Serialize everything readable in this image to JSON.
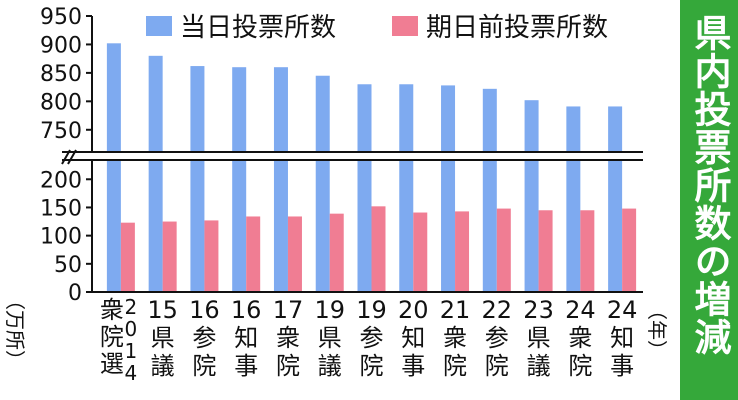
{
  "colors": {
    "election_day": "#7eaaf0",
    "early_voting": "#f07d93",
    "title_bg": "#35a83a"
  },
  "side_title": "県内投票所数の増減",
  "legend": {
    "election_day": "当日投票所数",
    "early_voting": "期日前投票所数"
  },
  "unit_label": "（万所）",
  "year_label": "（年）",
  "chart_data": {
    "type": "bar",
    "title": "県内投票所数の増減",
    "axis_break": true,
    "ylim_lower": [
      0,
      220
    ],
    "ylim_upper": [
      725,
      950
    ],
    "yticks_lower": [
      0,
      50,
      100,
      150,
      200
    ],
    "yticks_upper": [
      750,
      800,
      850,
      900,
      950
    ],
    "categories": [
      {
        "year": "2014",
        "label": "衆院選",
        "chars": [
          "2",
          "0",
          "1",
          "4"
        ]
      },
      {
        "year": "15",
        "label": "県議"
      },
      {
        "year": "16",
        "label": "参院"
      },
      {
        "year": "16",
        "label": "知事"
      },
      {
        "year": "17",
        "label": "衆院"
      },
      {
        "year": "19",
        "label": "県議"
      },
      {
        "year": "19",
        "label": "参院"
      },
      {
        "year": "20",
        "label": "知事"
      },
      {
        "year": "21",
        "label": "衆院"
      },
      {
        "year": "22",
        "label": "参院"
      },
      {
        "year": "23",
        "label": "県議"
      },
      {
        "year": "24",
        "label": "衆院"
      },
      {
        "year": "24",
        "label": "知事"
      }
    ],
    "series": [
      {
        "name": "当日投票所数",
        "values": [
          902,
          880,
          862,
          860,
          860,
          845,
          830,
          830,
          828,
          822,
          802,
          791,
          791
        ]
      },
      {
        "name": "期日前投票所数",
        "values": [
          123,
          125,
          127,
          134,
          134,
          139,
          152,
          141,
          143,
          148,
          145,
          145,
          148
        ]
      }
    ]
  }
}
